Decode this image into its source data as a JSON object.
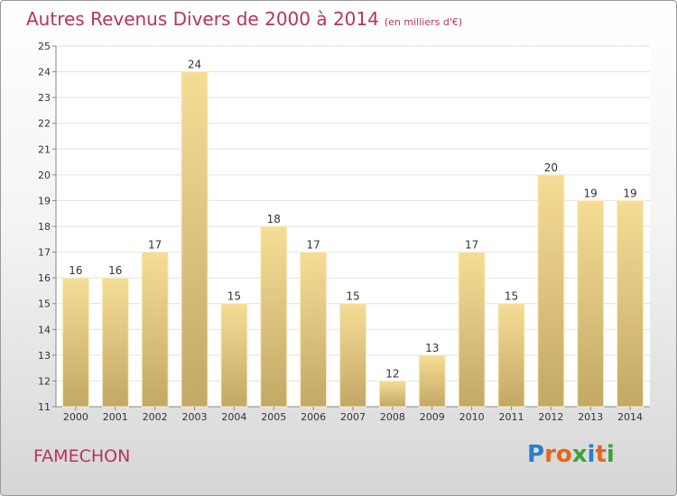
{
  "title": "Autres Revenus Divers de 2000 à 2014",
  "unit_note": "(en milliers d'€)",
  "commune": "FAMECHON",
  "brand": {
    "letters": [
      "P",
      "r",
      "o",
      "x",
      "i",
      "t",
      "i"
    ],
    "colors": [
      "#2a7fc6",
      "#e8641c",
      "#e8641c",
      "#3aa33a",
      "#2a7fc6",
      "#e8641c",
      "#3aa33a"
    ]
  },
  "colors": {
    "bar_top": "#f6dd95",
    "bar_bottom": "#c3a866",
    "title": "#b5345f",
    "grid": "#e2e2e2",
    "axis_text": "#333333"
  },
  "chart_data": {
    "type": "bar",
    "categories": [
      "2000",
      "2001",
      "2002",
      "2003",
      "2004",
      "2005",
      "2006",
      "2007",
      "2008",
      "2009",
      "2010",
      "2011",
      "2012",
      "2013",
      "2014"
    ],
    "values": [
      16,
      16,
      17,
      24,
      15,
      18,
      17,
      15,
      12,
      13,
      17,
      15,
      20,
      19,
      19
    ],
    "ylim": [
      11,
      25
    ],
    "yticks": [
      11,
      12,
      13,
      14,
      15,
      16,
      17,
      18,
      19,
      20,
      21,
      22,
      23,
      24,
      25
    ],
    "grid": true
  }
}
